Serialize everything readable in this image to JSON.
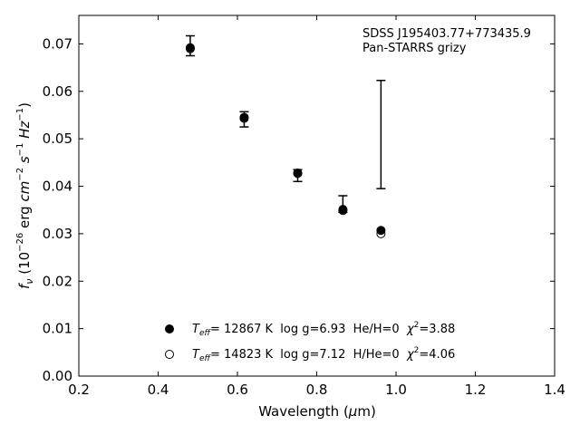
{
  "chart_data": {
    "type": "scatter",
    "xlabel": "Wavelength (μm)",
    "ylabel": "f_ν (10^-26 erg cm^-2 s^-1 Hz^-1)",
    "xlim": [
      0.2,
      1.4
    ],
    "ylim": [
      0.0,
      0.076
    ],
    "x_ticks": [
      0.2,
      0.4,
      0.6,
      0.8,
      1.0,
      1.2,
      1.4
    ],
    "x_tick_labels": [
      "0.2",
      "0.4",
      "0.6",
      "0.8",
      "1.0",
      "1.2",
      "1.4"
    ],
    "y_ticks": [
      0.0,
      0.01,
      0.02,
      0.03,
      0.04,
      0.05,
      0.06,
      0.07
    ],
    "y_tick_labels": [
      "0.00",
      "0.01",
      "0.02",
      "0.03",
      "0.04",
      "0.05",
      "0.06",
      "0.07"
    ],
    "annotation_lines": [
      "SDSS J195403.77+773435.9",
      "Pan-STARRS grizy"
    ],
    "observed": {
      "x": [
        0.481,
        0.617,
        0.752,
        0.866,
        0.962
      ],
      "y_low": [
        0.0675,
        0.0525,
        0.041,
        0.0345,
        0.0395
      ],
      "y_high": [
        0.0717,
        0.0557,
        0.0435,
        0.038,
        0.0623
      ]
    },
    "series": [
      {
        "name": "T_eff= 12867 K  log g=6.93  He/H=0  χ²=3.88",
        "marker": "filled",
        "x": [
          0.481,
          0.617,
          0.752,
          0.866,
          0.962
        ],
        "y": [
          0.0692,
          0.0545,
          0.0428,
          0.0351,
          0.0307
        ]
      },
      {
        "name": "T_eff= 14823 K  log g=7.12  H/He=0  χ²=4.06",
        "marker": "open",
        "x": [
          0.481,
          0.617,
          0.752,
          0.866,
          0.962
        ],
        "y": [
          0.069,
          0.0543,
          0.0427,
          0.0349,
          0.03
        ]
      }
    ],
    "legend": {
      "placement": "bottom-center",
      "entries": [
        {
          "teff_label": "T",
          "teff_sub": "eff",
          "rest": "= 12867 K  log g=6.93  He/H=0  ",
          "chi": "χ",
          "chi_sup": "2",
          "chi_val": "=3.88"
        },
        {
          "teff_label": "T",
          "teff_sub": "eff",
          "rest": "= 14823 K  log g=7.12  H/He=0  ",
          "chi": "χ",
          "chi_sup": "2",
          "chi_val": "=4.06"
        }
      ]
    },
    "grid": false
  }
}
